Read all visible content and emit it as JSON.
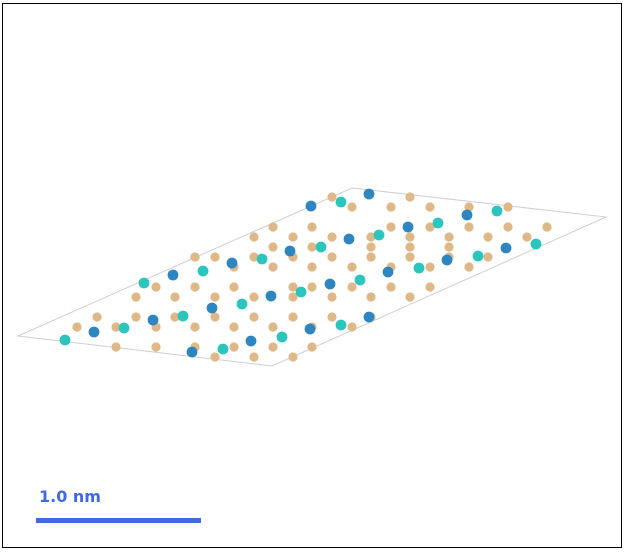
{
  "scale_bar": {
    "label": "1.0 nm",
    "color": "#4169e1"
  },
  "atom_colors": {
    "tan": "#deb887",
    "blue": "#2e86c1",
    "cyan": "#2cc5bd"
  },
  "cell_outline_color": "#cfcfcf",
  "atom_count": {
    "tan": 85,
    "blue": 27,
    "cyan": 23
  }
}
